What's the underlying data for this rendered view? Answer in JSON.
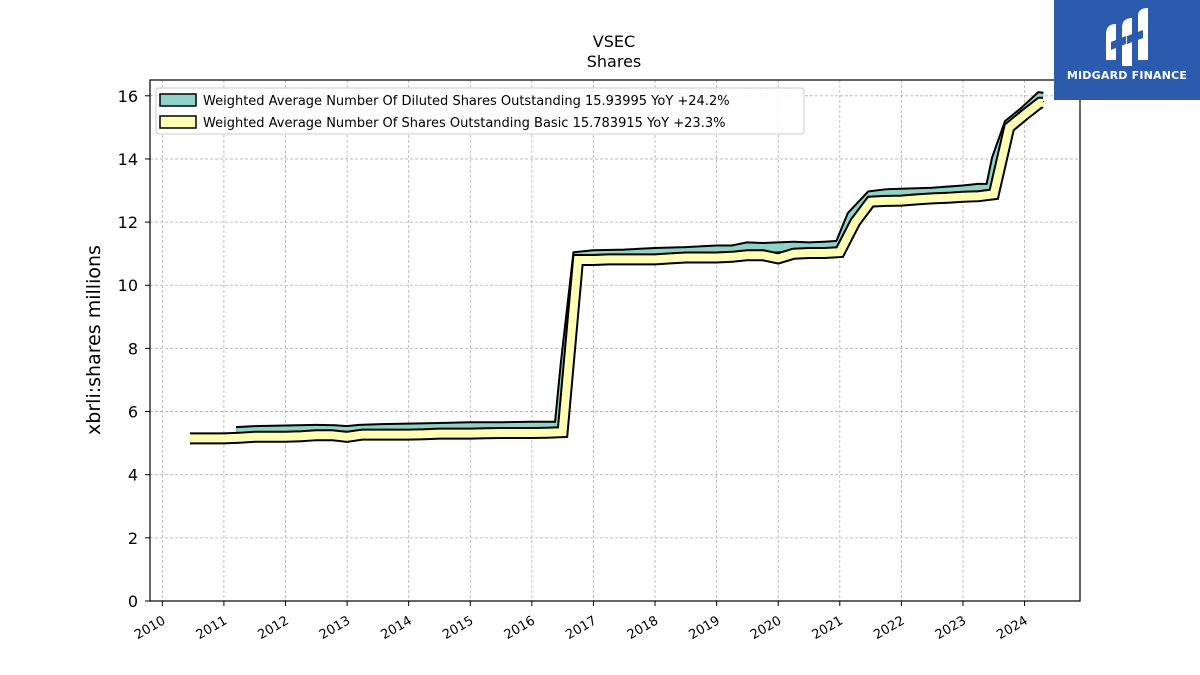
{
  "brand": {
    "name": "MIDGARD FINANCE"
  },
  "chart_data": {
    "type": "line",
    "title": "VSEC",
    "subtitle": "Shares",
    "xlabel": "",
    "ylabel": "xbrli:shares millions",
    "xlim": [
      2009.8,
      2024.9
    ],
    "ylim": [
      0,
      16.5
    ],
    "x_ticks": [
      "2010",
      "2011",
      "2012",
      "2013",
      "2014",
      "2015",
      "2016",
      "2017",
      "2018",
      "2019",
      "2020",
      "2021",
      "2022",
      "2023",
      "2024"
    ],
    "y_ticks": [
      "0",
      "2",
      "4",
      "6",
      "8",
      "10",
      "12",
      "14",
      "16"
    ],
    "grid": true,
    "legend_position": "top-left",
    "series": [
      {
        "name": "Weighted Average Number Of Diluted Shares Outstanding  15.93995 YoY +24.2%",
        "color": "#8dd3c7",
        "x": [
          2011.2,
          2011.5,
          2012.0,
          2012.5,
          2012.8,
          2013.0,
          2013.2,
          2013.5,
          2014.0,
          2014.5,
          2015.0,
          2015.5,
          2016.0,
          2016.45,
          2016.55,
          2016.75,
          2017.0,
          2017.5,
          2018.0,
          2018.5,
          2019.0,
          2019.25,
          2019.5,
          2019.75,
          2020.0,
          2020.25,
          2020.5,
          2020.75,
          2021.0,
          2021.2,
          2021.5,
          2021.75,
          2022.0,
          2022.5,
          2023.0,
          2023.25,
          2023.45,
          2023.55,
          2023.75,
          2024.0,
          2024.25,
          2024.3
        ],
        "values": [
          5.35,
          5.38,
          5.4,
          5.42,
          5.41,
          5.38,
          5.42,
          5.44,
          5.46,
          5.48,
          5.5,
          5.5,
          5.52,
          5.52,
          7.5,
          10.9,
          10.95,
          10.97,
          11.02,
          11.05,
          11.1,
          11.1,
          11.2,
          11.18,
          11.2,
          11.22,
          11.2,
          11.22,
          11.25,
          12.2,
          12.82,
          12.88,
          12.9,
          12.93,
          13.0,
          13.05,
          13.05,
          14.0,
          15.1,
          15.5,
          15.95,
          15.94
        ]
      },
      {
        "name": "Weighted Average Number Of Shares Outstanding Basic  15.783915 YoY +23.3%",
        "color": "#ffffb3",
        "x": [
          2010.45,
          2010.75,
          2011.0,
          2011.25,
          2011.5,
          2011.75,
          2012.0,
          2012.25,
          2012.5,
          2012.75,
          2013.0,
          2013.25,
          2013.5,
          2013.75,
          2014.0,
          2014.25,
          2014.5,
          2014.75,
          2015.0,
          2015.25,
          2015.5,
          2015.75,
          2016.0,
          2016.25,
          2016.5,
          2016.75,
          2017.0,
          2017.25,
          2017.5,
          2017.75,
          2018.0,
          2018.25,
          2018.5,
          2018.75,
          2019.0,
          2019.25,
          2019.5,
          2019.75,
          2020.0,
          2020.25,
          2020.5,
          2020.75,
          2021.0,
          2021.25,
          2021.5,
          2021.75,
          2022.0,
          2022.25,
          2022.5,
          2022.75,
          2023.0,
          2023.25,
          2023.5,
          2023.75,
          2024.0,
          2024.25,
          2024.3
        ],
        "values": [
          5.15,
          5.15,
          5.15,
          5.17,
          5.2,
          5.2,
          5.2,
          5.22,
          5.25,
          5.25,
          5.2,
          5.27,
          5.27,
          5.27,
          5.27,
          5.28,
          5.3,
          5.3,
          5.3,
          5.31,
          5.32,
          5.32,
          5.32,
          5.33,
          5.35,
          10.8,
          10.8,
          10.82,
          10.82,
          10.82,
          10.82,
          10.85,
          10.88,
          10.88,
          10.88,
          10.9,
          10.95,
          10.95,
          10.85,
          11.0,
          11.02,
          11.02,
          11.05,
          12.0,
          12.65,
          12.67,
          12.68,
          12.72,
          12.75,
          12.77,
          12.8,
          12.82,
          12.88,
          15.0,
          15.4,
          15.78,
          15.78
        ]
      }
    ]
  }
}
